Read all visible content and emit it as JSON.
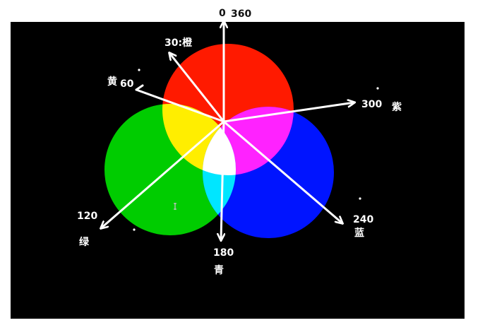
{
  "colors": {
    "page_bg": "#ffffff",
    "panel_bg": "#000000",
    "red": "#ff1a00",
    "green": "#00cc00",
    "blue": "#0014ff",
    "yellow": "#ffee00",
    "magenta": "#ff22ff",
    "cyan": "#00e6ff",
    "white": "#ffffff",
    "arrow": "#ffffff",
    "text_main": "#ffffff",
    "text_top": "#111111"
  },
  "labels": {
    "deg_0": "0",
    "deg_360": "360",
    "deg_30": "30:橙",
    "yellow_name": "黄",
    "deg_60": "60",
    "deg_300": "300",
    "purple_name": "紫",
    "deg_120": "120",
    "green_name": "绿",
    "deg_180": "180",
    "cyan_name": "青",
    "deg_240": "240",
    "blue_name": "蓝"
  }
}
